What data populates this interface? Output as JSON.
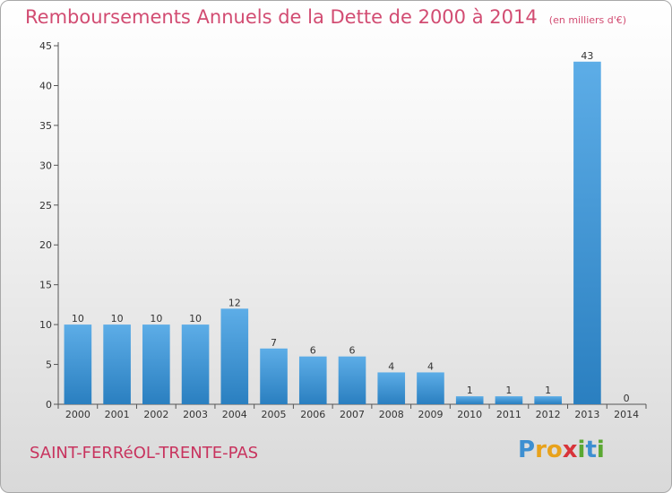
{
  "chart_data": {
    "type": "bar",
    "title": "Remboursements Annuels de la Dette de 2000 à 2014",
    "subtitle": "(en milliers d'€)",
    "categories": [
      "2000",
      "2001",
      "2002",
      "2003",
      "2004",
      "2005",
      "2006",
      "2007",
      "2008",
      "2009",
      "2010",
      "2011",
      "2012",
      "2013",
      "2014"
    ],
    "values": [
      10,
      10,
      10,
      10,
      12,
      7,
      6,
      6,
      4,
      4,
      1,
      1,
      1,
      43,
      0
    ],
    "ylim": [
      0,
      45
    ],
    "yticks": [
      0,
      5,
      10,
      15,
      20,
      25,
      30,
      35,
      40,
      45
    ],
    "xlabel": "",
    "ylabel": "",
    "grid": false,
    "bar_color_top": "#5dade7",
    "bar_color_bottom": "#2a7fc0"
  },
  "commune": "SAINT-FERRéOL-TRENTE-PAS",
  "logo": {
    "text": "Proxiti",
    "letters": [
      {
        "char": "P",
        "color": "#3d8fd1"
      },
      {
        "char": "r",
        "color": "#e8a21c"
      },
      {
        "char": "o",
        "color": "#e8a21c"
      },
      {
        "char": "x",
        "color": "#d8343a"
      },
      {
        "char": "i",
        "color": "#5aa832"
      },
      {
        "char": "t",
        "color": "#3d8fd1"
      },
      {
        "char": "i",
        "color": "#5aa832"
      }
    ]
  }
}
